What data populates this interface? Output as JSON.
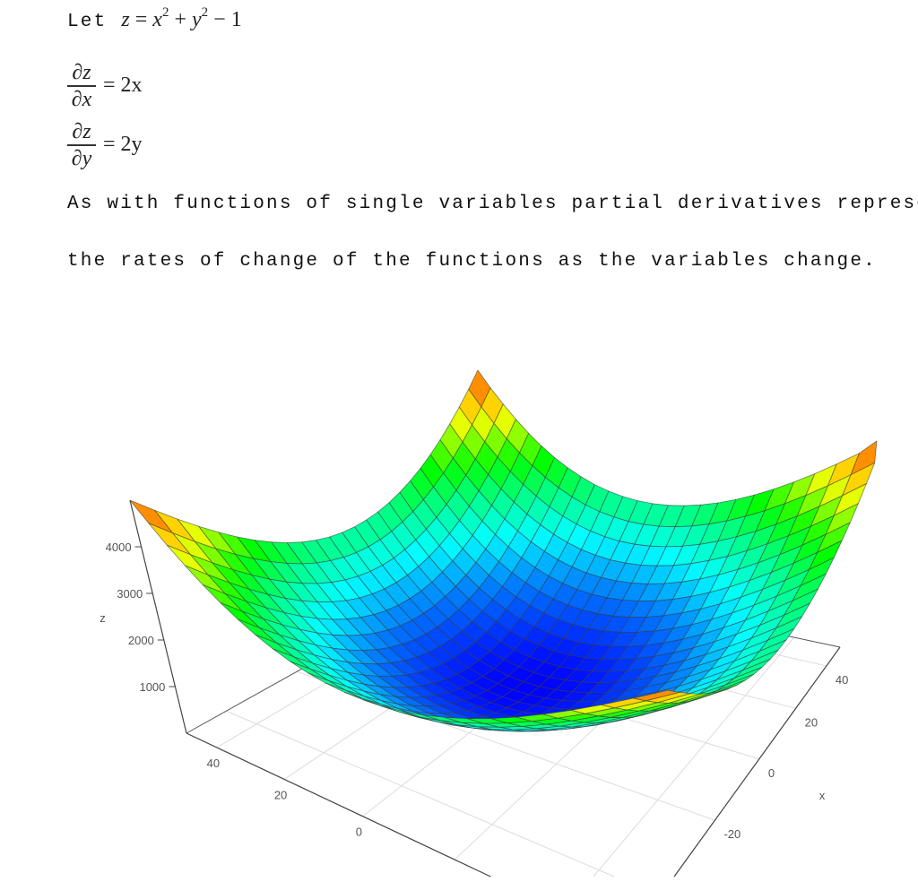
{
  "document": {
    "let_keyword": "Let",
    "equation": {
      "lhs": "z",
      "eq": "=",
      "x": "x",
      "pow": "2",
      "plus": "+",
      "y": "y",
      "minus": "−",
      "const": "1"
    },
    "partial_x": {
      "num": "∂z",
      "den": "∂x",
      "rhs": "= 2x"
    },
    "partial_y": {
      "num": "∂z",
      "den": "∂y",
      "rhs": "= 2y"
    },
    "paragraph_line1": "As with functions of single variables partial derivatives represent",
    "paragraph_line2": "the rates of change of the functions as the variables change."
  },
  "chart_data": {
    "type": "surface",
    "function": "z = x^2 + y^2 - 1",
    "x_range": [
      -50,
      50
    ],
    "y_range": [
      -50,
      50
    ],
    "grid_step": 4,
    "z_range": [
      0,
      5000
    ],
    "xlabel": "x",
    "ylabel": "",
    "zlabel": "z",
    "x_ticks": [
      "-20",
      "0",
      "20",
      "40"
    ],
    "x_tick_values": [
      -20,
      0,
      20,
      40
    ],
    "y_ticks": [
      "0",
      "20",
      "40"
    ],
    "y_tick_values": [
      0,
      20,
      40
    ],
    "z_ticks": [
      "1000",
      "2000",
      "3000",
      "4000"
    ],
    "z_tick_values": [
      1000,
      2000,
      3000,
      4000
    ],
    "grid": true,
    "colorscale": [
      [
        0,
        "#0000ff"
      ],
      [
        0.2,
        "#0080ff"
      ],
      [
        0.35,
        "#00ffff"
      ],
      [
        0.5,
        "#00ff80"
      ],
      [
        0.62,
        "#00ff00"
      ],
      [
        0.8,
        "#ffff00"
      ],
      [
        0.9,
        "#ffa500"
      ],
      [
        1,
        "#ff4500"
      ]
    ]
  }
}
